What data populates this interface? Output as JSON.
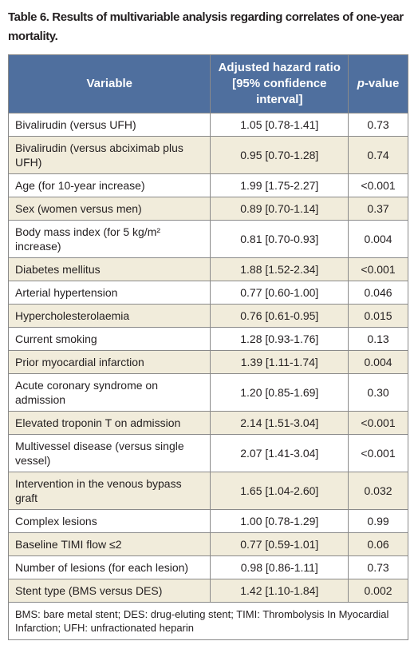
{
  "title": "Table 6. Results of multivariable analysis regarding correlates of one-year mortality.",
  "table": {
    "header": {
      "variable": "Variable",
      "hazard": "Adjusted hazard ratio [95% confidence interval]",
      "p_value": [
        "p",
        "-value"
      ]
    },
    "rows": [
      [
        "Bivalirudin (versus UFH)",
        "1.05 [0.78-1.41]",
        "0.73"
      ],
      [
        "Bivalirudin (versus abciximab plus UFH)",
        "0.95 [0.70-1.28]",
        "0.74"
      ],
      [
        "Age (for 10-year increase)",
        "1.99 [1.75-2.27]",
        "<0.001"
      ],
      [
        "Sex (women versus men)",
        "0.89 [0.70-1.14]",
        "0.37"
      ],
      [
        "Body mass index (for 5 kg/m² increase)",
        "0.81 [0.70-0.93]",
        "0.004"
      ],
      [
        "Diabetes mellitus",
        "1.88 [1.52-2.34]",
        "<0.001"
      ],
      [
        "Arterial hypertension",
        "0.77 [0.60-1.00]",
        "0.046"
      ],
      [
        "Hypercholesterolaemia",
        "0.76 [0.61-0.95]",
        "0.015"
      ],
      [
        "Current smoking",
        "1.28 [0.93-1.76]",
        "0.13"
      ],
      [
        "Prior myocardial infarction",
        "1.39 [1.11-1.74]",
        "0.004"
      ],
      [
        "Acute coronary syndrome on admission",
        "1.20 [0.85-1.69]",
        "0.30"
      ],
      [
        "Elevated troponin T on admission",
        "2.14 [1.51-3.04]",
        "<0.001"
      ],
      [
        "Multivessel disease (versus single vessel)",
        "2.07 [1.41-3.04]",
        "<0.001"
      ],
      [
        "Intervention in the venous bypass graft",
        "1.65 [1.04-2.60]",
        "0.032"
      ],
      [
        "Complex lesions",
        "1.00 [0.78-1.29]",
        "0.99"
      ],
      [
        "Baseline TIMI flow ≤2",
        "0.77 [0.59-1.01]",
        "0.06"
      ],
      [
        "Number of lesions (for each lesion)",
        "0.98 [0.86-1.11]",
        "0.73"
      ],
      [
        "Stent type (BMS versus DES)",
        "1.42 [1.10-1.84]",
        "0.002"
      ]
    ],
    "footnote": "BMS: bare metal stent; DES: drug-eluting stent; TIMI: Thrombolysis In Myocardial Infarction; UFH: unfractionated heparin"
  }
}
